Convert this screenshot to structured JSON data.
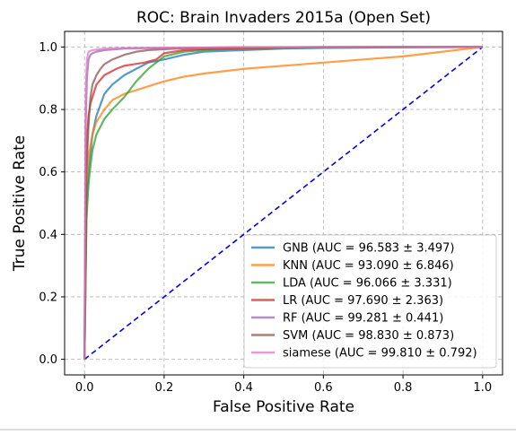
{
  "chart_data": {
    "type": "line",
    "title": "ROC: Brain Invaders 2015a (Open Set)",
    "xlabel": "False Positive Rate",
    "ylabel": "True Positive Rate",
    "xlim": [
      -0.05,
      1.05
    ],
    "ylim": [
      -0.05,
      1.05
    ],
    "xticks": [
      0.0,
      0.2,
      0.4,
      0.6,
      0.8,
      1.0
    ],
    "yticks": [
      0.0,
      0.2,
      0.4,
      0.6,
      0.8,
      1.0
    ],
    "xtick_labels": [
      "0.0",
      "0.2",
      "0.4",
      "0.6",
      "0.8",
      "1.0"
    ],
    "ytick_labels": [
      "0.0",
      "0.2",
      "0.4",
      "0.6",
      "0.8",
      "1.0"
    ],
    "grid": true,
    "legend_position": "lower-right",
    "series": [
      {
        "name": "GNB (AUC = 96.583 ± 3.497)",
        "color": "#1f77b4",
        "x": [
          0,
          0.005,
          0.01,
          0.015,
          0.02,
          0.03,
          0.05,
          0.07,
          0.1,
          0.13,
          0.16,
          0.2,
          0.25,
          0.3,
          0.4,
          0.5,
          0.6,
          0.8,
          1.0
        ],
        "y": [
          0,
          0.5,
          0.6,
          0.66,
          0.72,
          0.78,
          0.85,
          0.88,
          0.91,
          0.93,
          0.95,
          0.96,
          0.975,
          0.985,
          0.99,
          0.995,
          0.997,
          0.999,
          1.0
        ]
      },
      {
        "name": "KNN (AUC = 93.090 ± 6.846)",
        "color": "#ff7f0e",
        "x": [
          0,
          0.005,
          0.01,
          0.02,
          0.03,
          0.05,
          0.07,
          0.1,
          0.15,
          0.2,
          0.25,
          0.3,
          0.4,
          0.5,
          0.6,
          0.7,
          0.8,
          0.9,
          1.0
        ],
        "y": [
          0,
          0.55,
          0.65,
          0.72,
          0.76,
          0.8,
          0.83,
          0.85,
          0.87,
          0.89,
          0.905,
          0.915,
          0.93,
          0.94,
          0.95,
          0.96,
          0.97,
          0.985,
          1.0
        ]
      },
      {
        "name": "LDA (AUC = 96.066 ± 3.331)",
        "color": "#2ca02c",
        "x": [
          0,
          0.005,
          0.01,
          0.015,
          0.02,
          0.03,
          0.05,
          0.07,
          0.1,
          0.13,
          0.16,
          0.19,
          0.2,
          0.25,
          0.3,
          0.4,
          0.5,
          0.6,
          0.8,
          1.0
        ],
        "y": [
          0,
          0.45,
          0.56,
          0.62,
          0.67,
          0.72,
          0.77,
          0.8,
          0.84,
          0.89,
          0.93,
          0.96,
          0.97,
          0.985,
          0.99,
          0.995,
          0.997,
          0.998,
          0.999,
          1.0
        ]
      },
      {
        "name": "LR (AUC = 97.690 ± 2.363)",
        "color": "#d62728",
        "x": [
          0,
          0.003,
          0.007,
          0.01,
          0.015,
          0.02,
          0.03,
          0.05,
          0.08,
          0.1,
          0.15,
          0.18,
          0.2,
          0.25,
          0.3,
          0.4,
          0.5,
          0.6,
          0.8,
          1.0
        ],
        "y": [
          0,
          0.6,
          0.72,
          0.78,
          0.82,
          0.84,
          0.88,
          0.91,
          0.93,
          0.94,
          0.95,
          0.96,
          0.98,
          0.99,
          0.993,
          0.996,
          0.998,
          0.999,
          1.0,
          1.0
        ]
      },
      {
        "name": "RF (AUC = 99.281 ± 0.441)",
        "color": "#9467bd",
        "x": [
          0,
          0.003,
          0.006,
          0.01,
          0.015,
          0.02,
          0.03,
          0.05,
          0.08,
          0.1,
          0.2,
          0.3,
          0.5,
          0.7,
          1.0
        ],
        "y": [
          0,
          0.75,
          0.9,
          0.96,
          0.975,
          0.98,
          0.985,
          0.99,
          0.993,
          0.995,
          0.997,
          0.998,
          0.999,
          1.0,
          1.0
        ]
      },
      {
        "name": "SVM (AUC = 98.830 ± 0.873)",
        "color": "#8c564b",
        "x": [
          0,
          0.005,
          0.01,
          0.015,
          0.02,
          0.03,
          0.04,
          0.05,
          0.07,
          0.1,
          0.13,
          0.16,
          0.2,
          0.25,
          0.3,
          0.4,
          0.6,
          0.8,
          1.0
        ],
        "y": [
          0,
          0.6,
          0.75,
          0.84,
          0.88,
          0.91,
          0.93,
          0.945,
          0.96,
          0.975,
          0.985,
          0.99,
          0.993,
          0.996,
          0.998,
          0.999,
          1.0,
          1.0,
          1.0
        ]
      },
      {
        "name": "siamese (AUC = 99.810 ± 0.792)",
        "color": "#e377c2",
        "x": [
          0,
          0.003,
          0.006,
          0.01,
          0.02,
          0.05,
          0.1,
          0.2,
          0.4,
          0.7,
          1.0
        ],
        "y": [
          0,
          0.85,
          0.96,
          0.985,
          0.99,
          0.995,
          0.997,
          0.998,
          0.999,
          1.0,
          1.0
        ]
      }
    ],
    "reference_line": {
      "x": [
        0,
        1
      ],
      "y": [
        0,
        1
      ],
      "color": "#0000ee",
      "style": "dashed"
    }
  }
}
